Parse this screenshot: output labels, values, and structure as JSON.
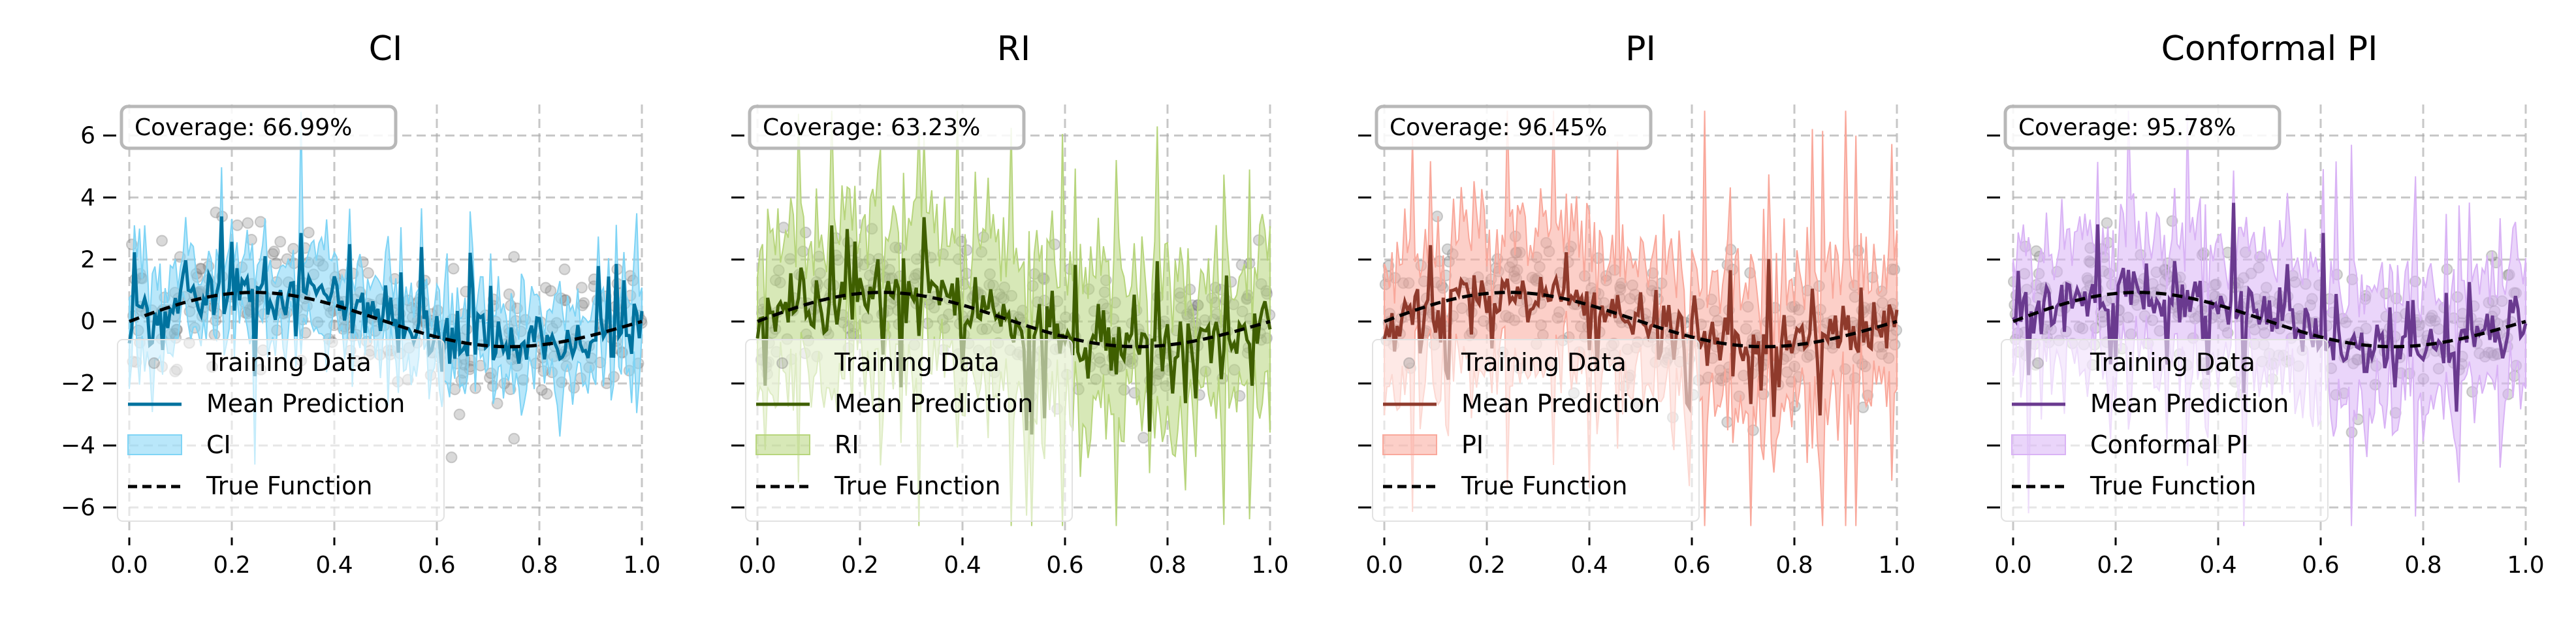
{
  "figure": {
    "colors": {
      "training_points": "#808080",
      "true_function": "#000000",
      "grid": "#b0b0b0"
    }
  },
  "chart_data": [
    {
      "type": "line",
      "title": "CI",
      "coverage_label": "Coverage: 66.99%",
      "band_label": "CI",
      "band_color": "#7fd4f5",
      "line_color": "#00729e",
      "legend": [
        "Training Data",
        "Mean Prediction",
        "CI",
        "True Function"
      ],
      "xlim": [
        0.0,
        1.0
      ],
      "ylim": [
        -6.8,
        7.0
      ],
      "xticks": [
        "0.0",
        "0.2",
        "0.4",
        "0.6",
        "0.8",
        "1.0"
      ],
      "yticks": [
        "−6",
        "−4",
        "−2",
        "0",
        "2",
        "4",
        "6"
      ],
      "grid": true,
      "legend_position": "lower-left",
      "band_scale": 1.15,
      "seed": 11
    },
    {
      "type": "line",
      "title": "RI",
      "coverage_label": "Coverage: 63.23%",
      "band_label": "RI",
      "band_color": "#b7d57c",
      "line_color": "#3f5f00",
      "legend": [
        "Training Data",
        "Mean Prediction",
        "RI",
        "True Function"
      ],
      "xlim": [
        0.0,
        1.0
      ],
      "ylim": [
        -6.8,
        7.0
      ],
      "xticks": [
        "0.0",
        "0.2",
        "0.4",
        "0.6",
        "0.8",
        "1.0"
      ],
      "yticks": [
        "−6",
        "−4",
        "−2",
        "0",
        "2",
        "4",
        "6"
      ],
      "grid": true,
      "legend_position": "lower-left",
      "band_scale": 2.3,
      "seed": 23
    },
    {
      "type": "line",
      "title": "PI",
      "coverage_label": "Coverage: 96.45%",
      "band_label": "PI",
      "band_color": "#f9a89b",
      "line_color": "#8f3a2c",
      "legend": [
        "Training Data",
        "Mean Prediction",
        "PI",
        "True Function"
      ],
      "xlim": [
        0.0,
        1.0
      ],
      "ylim": [
        -6.8,
        7.0
      ],
      "xticks": [
        "0.0",
        "0.2",
        "0.4",
        "0.6",
        "0.8",
        "1.0"
      ],
      "yticks": [
        "−6",
        "−4",
        "−2",
        "0",
        "2",
        "4",
        "6"
      ],
      "grid": true,
      "legend_position": "lower-left",
      "band_scale": 2.2,
      "seed": 37
    },
    {
      "type": "line",
      "title": "Conformal PI",
      "coverage_label": "Coverage: 95.78%",
      "band_label": "Conformal PI",
      "band_color": "#d9b3f5",
      "line_color": "#6a3a8f",
      "legend": [
        "Training Data",
        "Mean Prediction",
        "Conformal PI",
        "True Function"
      ],
      "xlim": [
        0.0,
        1.0
      ],
      "ylim": [
        -6.8,
        7.0
      ],
      "xticks": [
        "0.0",
        "0.2",
        "0.4",
        "0.6",
        "0.8",
        "1.0"
      ],
      "yticks": [
        "−6",
        "−4",
        "−2",
        "0",
        "2",
        "4",
        "6"
      ],
      "grid": true,
      "legend_position": "lower-left",
      "band_scale": 2.0,
      "seed": 53
    }
  ]
}
